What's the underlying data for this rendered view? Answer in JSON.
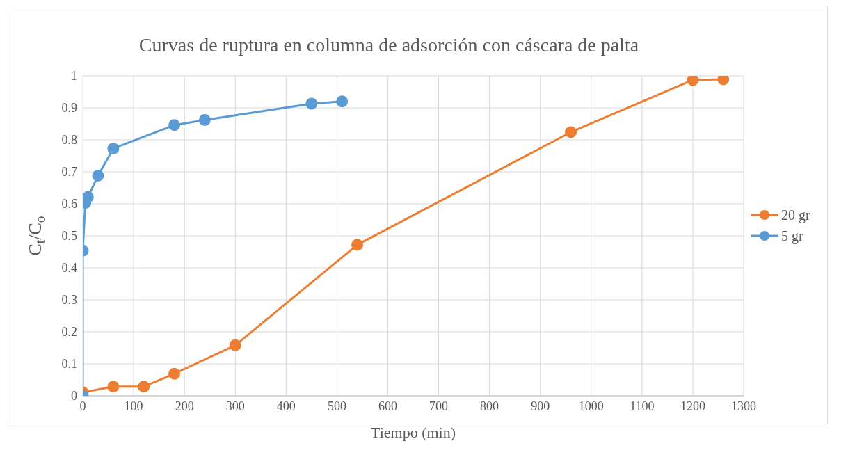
{
  "chart_data": {
    "type": "line",
    "title": "Curvas de ruptura en columna de adsorción con cáscara de palta",
    "xlabel": "Tiempo (min)",
    "ylabel": "C$_{t}$/C$_{o}$",
    "xlim": [
      0,
      1300
    ],
    "xticks": [
      0,
      100,
      200,
      300,
      400,
      500,
      600,
      700,
      800,
      900,
      1000,
      1100,
      1200,
      1300
    ],
    "ylim": [
      0,
      1
    ],
    "yticks": [
      0,
      0.1,
      0.2,
      0.3,
      0.4,
      0.5,
      0.6,
      0.7,
      0.8,
      0.9,
      1
    ],
    "grid": true,
    "legend": "right",
    "marker": "circle",
    "line_style": "solid",
    "series": [
      {
        "name": "20 gr",
        "color": "#ed7d31",
        "x": [
          0,
          60,
          120,
          180,
          300,
          540,
          960,
          1200,
          1260
        ],
        "values": [
          0.011,
          0.029,
          0.029,
          0.069,
          0.158,
          0.472,
          0.824,
          0.987,
          0.989
        ]
      },
      {
        "name": "5 gr",
        "color": "#5b9bd5",
        "x": [
          0,
          0,
          5,
          10,
          30,
          60,
          180,
          240,
          450,
          510
        ],
        "values": [
          0,
          0.454,
          0.603,
          0.621,
          0.688,
          0.773,
          0.846,
          0.862,
          0.913,
          0.92
        ]
      }
    ]
  }
}
